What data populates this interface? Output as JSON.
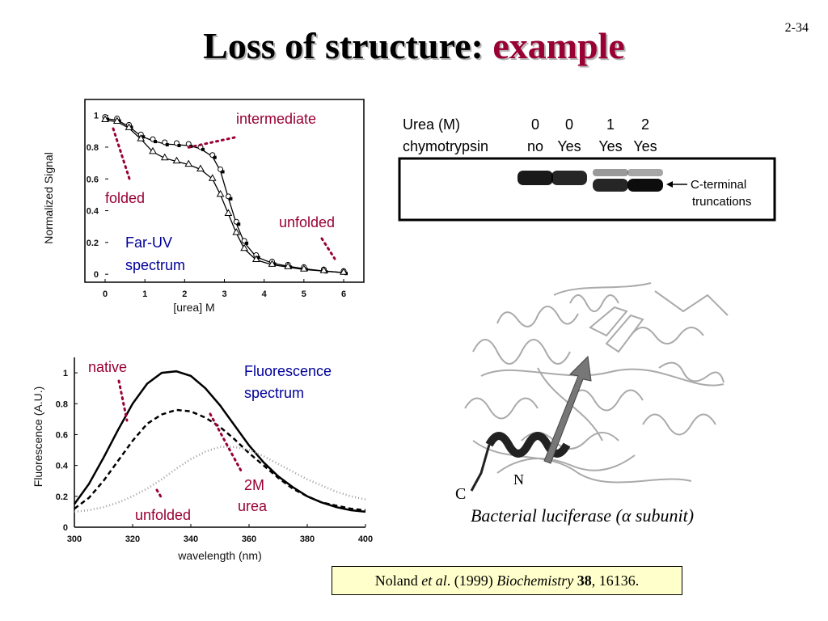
{
  "slide": {
    "number": "2-34",
    "title_main": "Loss of structure:",
    "title_accent": "example",
    "accent_color": "#990033"
  },
  "colors": {
    "annotation_red": "#990033",
    "annotation_blue": "#000099",
    "citation_bg": "#ffffcc"
  },
  "chart_data": [
    {
      "type": "line",
      "ylabel": "Normalized Signal",
      "xlabel": "[urea] M",
      "xlim": [
        0,
        6
      ],
      "ylim": [
        -0.05,
        1.1
      ],
      "x_ticks": [
        "0",
        "1",
        "2",
        "3",
        "4",
        "5",
        "6"
      ],
      "y_ticks": [
        "0",
        "0.2",
        "0.4",
        "0.6",
        "0.8",
        "1"
      ],
      "series": [
        {
          "x": [
            0,
            0.3,
            0.6,
            0.9,
            1.2,
            1.5,
            1.8,
            2.1,
            2.4,
            2.7,
            2.9,
            3.1,
            3.3,
            3.5,
            3.8,
            4.2,
            4.6,
            5.0,
            5.5,
            6.0
          ],
          "values": [
            0.98,
            0.97,
            0.93,
            0.87,
            0.84,
            0.82,
            0.815,
            0.81,
            0.79,
            0.74,
            0.65,
            0.48,
            0.32,
            0.2,
            0.11,
            0.07,
            0.05,
            0.035,
            0.02,
            0.01
          ]
        },
        {
          "x": [
            0,
            0.3,
            0.6,
            0.9,
            1.2,
            1.5,
            1.8,
            2.1,
            2.4,
            2.7,
            2.9,
            3.1,
            3.3,
            3.5,
            3.8,
            4.2,
            4.6,
            5.0,
            5.5,
            6.0
          ],
          "values": [
            0.97,
            0.96,
            0.92,
            0.85,
            0.77,
            0.73,
            0.71,
            0.69,
            0.66,
            0.6,
            0.5,
            0.38,
            0.26,
            0.16,
            0.09,
            0.06,
            0.045,
            0.03,
            0.02,
            0.01
          ]
        }
      ],
      "annotations": {
        "intermediate": "intermediate",
        "folded": "folded",
        "unfolded": "unfolded",
        "method_line1": "Far-UV",
        "method_line2": "spectrum"
      }
    },
    {
      "type": "line",
      "ylabel": "Fluorescence (A.U.)",
      "xlabel": "wavelength (nm)",
      "xlim": [
        300,
        400
      ],
      "ylim": [
        0,
        1.1
      ],
      "x_ticks": [
        "300",
        "320",
        "340",
        "360",
        "380",
        "400"
      ],
      "y_ticks": [
        "0",
        "0.2",
        "0.4",
        "0.6",
        "0.8",
        "1"
      ],
      "series": [
        {
          "style": "solid",
          "x": [
            300,
            305,
            310,
            315,
            320,
            325,
            330,
            335,
            340,
            345,
            350,
            355,
            360,
            365,
            370,
            375,
            380,
            385,
            390,
            395,
            400
          ],
          "values": [
            0.15,
            0.28,
            0.45,
            0.63,
            0.8,
            0.93,
            1.0,
            1.01,
            0.98,
            0.9,
            0.79,
            0.66,
            0.53,
            0.42,
            0.33,
            0.26,
            0.2,
            0.16,
            0.13,
            0.11,
            0.1
          ]
        },
        {
          "style": "dashed",
          "x": [
            300,
            305,
            310,
            315,
            320,
            325,
            330,
            335,
            340,
            345,
            350,
            355,
            360,
            365,
            370,
            375,
            380,
            385,
            390,
            395,
            400
          ],
          "values": [
            0.12,
            0.19,
            0.3,
            0.43,
            0.56,
            0.67,
            0.73,
            0.76,
            0.75,
            0.71,
            0.65,
            0.57,
            0.48,
            0.4,
            0.32,
            0.25,
            0.2,
            0.16,
            0.14,
            0.12,
            0.11
          ]
        },
        {
          "style": "dotted",
          "x": [
            300,
            305,
            310,
            315,
            320,
            325,
            330,
            335,
            340,
            345,
            350,
            355,
            360,
            365,
            370,
            375,
            380,
            385,
            390,
            395,
            400
          ],
          "values": [
            0.1,
            0.11,
            0.13,
            0.16,
            0.2,
            0.25,
            0.31,
            0.38,
            0.44,
            0.49,
            0.52,
            0.52,
            0.5,
            0.46,
            0.41,
            0.36,
            0.31,
            0.27,
            0.23,
            0.2,
            0.18
          ]
        }
      ],
      "annotations": {
        "native": "native",
        "unfolded": "unfolded",
        "urea_line1": "2M",
        "urea_line2": "urea",
        "method_line1": "Fluorescence",
        "method_line2": "spectrum"
      }
    }
  ],
  "gel": {
    "row1_label": "Urea (M)",
    "row2_label": "chymotrypsin",
    "lanes": [
      {
        "urea": "0",
        "chymotrypsin": "no",
        "bands": [
          0.9
        ]
      },
      {
        "urea": "0",
        "chymotrypsin": "Yes",
        "bands": [
          0.85
        ]
      },
      {
        "urea": "1",
        "chymotrypsin": "Yes",
        "bands": [
          0.4,
          0.85
        ]
      },
      {
        "urea": "2",
        "chymotrypsin": "Yes",
        "bands": [
          0.35,
          0.95
        ]
      }
    ],
    "band_label_line1": "C-terminal",
    "band_label_line2": "truncations"
  },
  "structure": {
    "n_label": "N",
    "c_label": "C",
    "caption": "Bacterial luciferase (α subunit)"
  },
  "citation": {
    "author": "Noland",
    "et_al": "et al",
    "year": ". (1999)",
    "journal": "Biochemistry",
    "volume": "38",
    "pages": ", 16136."
  }
}
